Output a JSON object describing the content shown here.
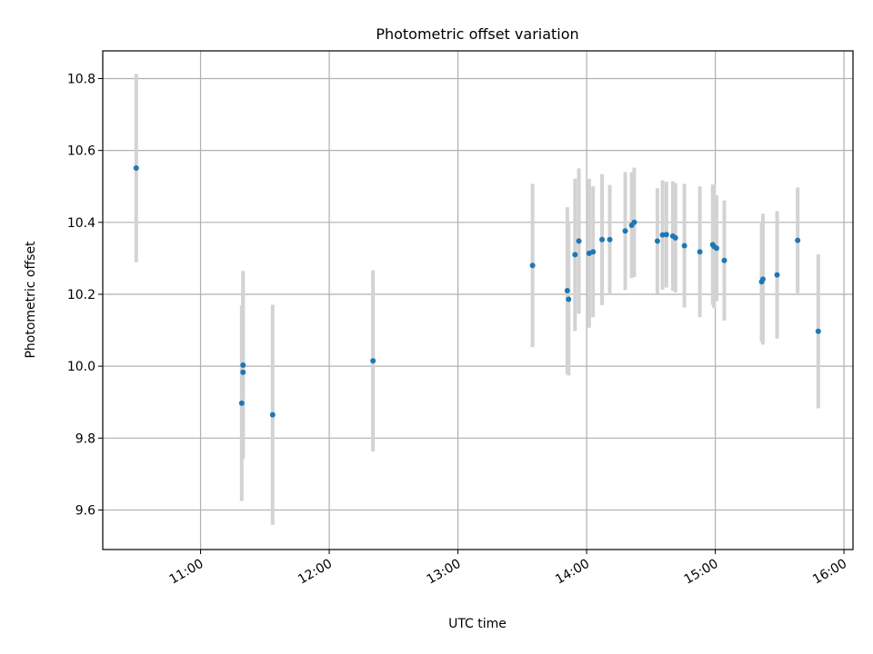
{
  "chart_data": {
    "type": "scatter",
    "title": "Photometric offset variation",
    "xlabel": "UTC time",
    "ylabel": "Photometric offset",
    "x_unit": "UTC hour of day",
    "xlim": [
      10.24,
      16.07
    ],
    "ylim": [
      9.49,
      10.877
    ],
    "grid": true,
    "x_ticks": [
      {
        "value": 11,
        "label": "11:00"
      },
      {
        "value": 12,
        "label": "12:00"
      },
      {
        "value": 13,
        "label": "13:00"
      },
      {
        "value": 14,
        "label": "14:00"
      },
      {
        "value": 15,
        "label": "15:00"
      },
      {
        "value": 16,
        "label": "16:00"
      }
    ],
    "y_ticks": [
      {
        "value": 9.6,
        "label": "9.6"
      },
      {
        "value": 9.8,
        "label": "9.8"
      },
      {
        "value": 10.0,
        "label": "10.0"
      },
      {
        "value": 10.2,
        "label": "10.2"
      },
      {
        "value": 10.4,
        "label": "10.4"
      },
      {
        "value": 10.6,
        "label": "10.6"
      },
      {
        "value": 10.8,
        "label": "10.8"
      }
    ],
    "colors": {
      "point": "#1f77b4",
      "errorbar": "#d3d3d3",
      "grid": "#b0b0b0"
    },
    "points": [
      {
        "x": 10.5,
        "y": 10.551,
        "yerr": 0.262
      },
      {
        "x": 11.32,
        "y": 9.897,
        "yerr": 0.272
      },
      {
        "x": 11.33,
        "y": 9.983,
        "yerr": 0.232
      },
      {
        "x": 11.33,
        "y": 10.003,
        "yerr": 0.262
      },
      {
        "x": 11.56,
        "y": 9.865,
        "yerr": 0.306
      },
      {
        "x": 12.34,
        "y": 10.015,
        "yerr": 0.252
      },
      {
        "x": 13.58,
        "y": 10.28,
        "yerr": 0.227
      },
      {
        "x": 13.85,
        "y": 10.21,
        "yerr": 0.232
      },
      {
        "x": 13.86,
        "y": 10.186,
        "yerr": 0.212
      },
      {
        "x": 13.91,
        "y": 10.31,
        "yerr": 0.212
      },
      {
        "x": 13.94,
        "y": 10.348,
        "yerr": 0.202
      },
      {
        "x": 14.02,
        "y": 10.314,
        "yerr": 0.207
      },
      {
        "x": 14.05,
        "y": 10.318,
        "yerr": 0.182
      },
      {
        "x": 14.12,
        "y": 10.352,
        "yerr": 0.182
      },
      {
        "x": 14.18,
        "y": 10.352,
        "yerr": 0.152
      },
      {
        "x": 14.3,
        "y": 10.376,
        "yerr": 0.164
      },
      {
        "x": 14.35,
        "y": 10.392,
        "yerr": 0.147
      },
      {
        "x": 14.37,
        "y": 10.4,
        "yerr": 0.152
      },
      {
        "x": 14.55,
        "y": 10.348,
        "yerr": 0.147
      },
      {
        "x": 14.59,
        "y": 10.365,
        "yerr": 0.152
      },
      {
        "x": 14.62,
        "y": 10.366,
        "yerr": 0.147
      },
      {
        "x": 14.67,
        "y": 10.362,
        "yerr": 0.152
      },
      {
        "x": 14.69,
        "y": 10.357,
        "yerr": 0.152
      },
      {
        "x": 14.76,
        "y": 10.335,
        "yerr": 0.172
      },
      {
        "x": 14.88,
        "y": 10.318,
        "yerr": 0.182
      },
      {
        "x": 14.98,
        "y": 10.338,
        "yerr": 0.167
      },
      {
        "x": 14.99,
        "y": 10.333,
        "yerr": 0.172
      },
      {
        "x": 15.01,
        "y": 10.328,
        "yerr": 0.147
      },
      {
        "x": 15.07,
        "y": 10.294,
        "yerr": 0.167
      },
      {
        "x": 15.36,
        "y": 10.235,
        "yerr": 0.167
      },
      {
        "x": 15.37,
        "y": 10.242,
        "yerr": 0.182
      },
      {
        "x": 15.48,
        "y": 10.254,
        "yerr": 0.177
      },
      {
        "x": 15.64,
        "y": 10.35,
        "yerr": 0.147
      },
      {
        "x": 15.8,
        "y": 10.097,
        "yerr": 0.214
      }
    ]
  }
}
